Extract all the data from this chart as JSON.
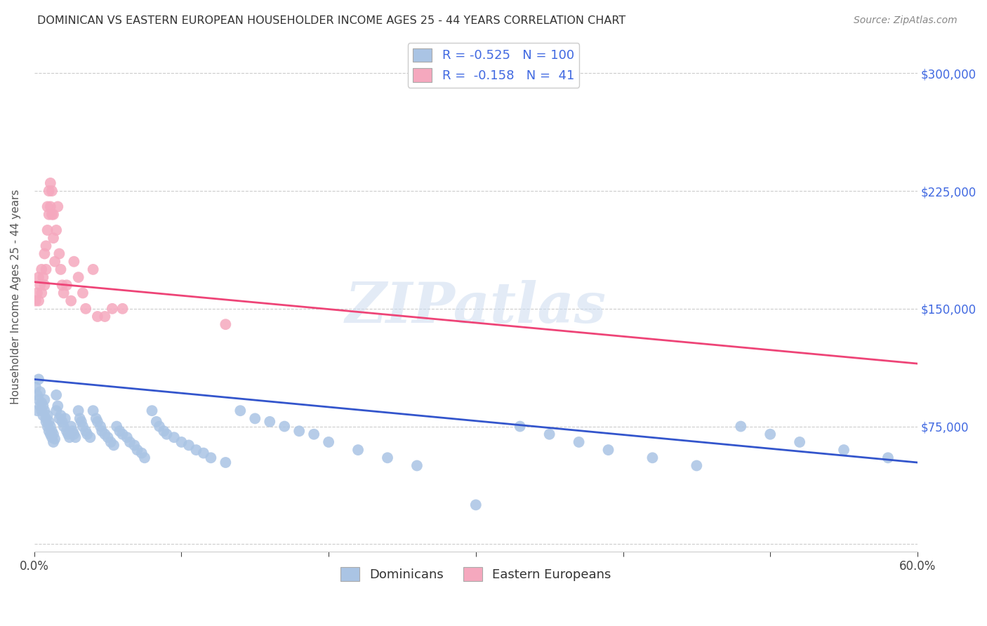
{
  "title": "DOMINICAN VS EASTERN EUROPEAN HOUSEHOLDER INCOME AGES 25 - 44 YEARS CORRELATION CHART",
  "source": "Source: ZipAtlas.com",
  "ylabel": "Householder Income Ages 25 - 44 years",
  "xlim": [
    0.0,
    0.6
  ],
  "ylim": [
    -5000,
    320000
  ],
  "watermark": "ZIPatlas",
  "legend": {
    "blue_r": "-0.525",
    "blue_n": "100",
    "pink_r": "-0.158",
    "pink_n": "41"
  },
  "blue_color": "#aac4e4",
  "pink_color": "#f5a8be",
  "blue_line_color": "#3355cc",
  "pink_line_color": "#ee4477",
  "dominicans_x": [
    0.001,
    0.002,
    0.002,
    0.003,
    0.003,
    0.004,
    0.004,
    0.005,
    0.005,
    0.006,
    0.006,
    0.007,
    0.007,
    0.008,
    0.008,
    0.009,
    0.009,
    0.01,
    0.01,
    0.011,
    0.011,
    0.012,
    0.012,
    0.013,
    0.013,
    0.014,
    0.015,
    0.015,
    0.016,
    0.017,
    0.018,
    0.019,
    0.02,
    0.021,
    0.022,
    0.023,
    0.024,
    0.025,
    0.026,
    0.027,
    0.028,
    0.03,
    0.031,
    0.032,
    0.033,
    0.035,
    0.036,
    0.038,
    0.04,
    0.042,
    0.043,
    0.045,
    0.046,
    0.048,
    0.05,
    0.052,
    0.054,
    0.056,
    0.058,
    0.06,
    0.063,
    0.065,
    0.068,
    0.07,
    0.073,
    0.075,
    0.08,
    0.083,
    0.085,
    0.088,
    0.09,
    0.095,
    0.1,
    0.105,
    0.11,
    0.115,
    0.12,
    0.13,
    0.14,
    0.15,
    0.16,
    0.17,
    0.18,
    0.19,
    0.2,
    0.22,
    0.24,
    0.26,
    0.3,
    0.33,
    0.35,
    0.37,
    0.39,
    0.42,
    0.45,
    0.48,
    0.5,
    0.52,
    0.55,
    0.58
  ],
  "dominicans_y": [
    100000,
    95000,
    85000,
    105000,
    92000,
    88000,
    97000,
    90000,
    85000,
    82000,
    88000,
    85000,
    92000,
    80000,
    78000,
    75000,
    82000,
    72000,
    78000,
    70000,
    75000,
    68000,
    72000,
    65000,
    70000,
    67000,
    95000,
    85000,
    88000,
    80000,
    82000,
    78000,
    75000,
    80000,
    72000,
    70000,
    68000,
    75000,
    72000,
    70000,
    68000,
    85000,
    80000,
    78000,
    75000,
    72000,
    70000,
    68000,
    85000,
    80000,
    78000,
    75000,
    72000,
    70000,
    68000,
    65000,
    63000,
    75000,
    72000,
    70000,
    68000,
    65000,
    63000,
    60000,
    58000,
    55000,
    85000,
    78000,
    75000,
    72000,
    70000,
    68000,
    65000,
    63000,
    60000,
    58000,
    55000,
    52000,
    85000,
    80000,
    78000,
    75000,
    72000,
    70000,
    65000,
    60000,
    55000,
    50000,
    25000,
    75000,
    70000,
    65000,
    60000,
    55000,
    50000,
    75000,
    70000,
    65000,
    60000,
    55000
  ],
  "eastern_europeans_x": [
    0.001,
    0.002,
    0.003,
    0.003,
    0.004,
    0.005,
    0.005,
    0.006,
    0.007,
    0.007,
    0.008,
    0.008,
    0.009,
    0.009,
    0.01,
    0.01,
    0.011,
    0.011,
    0.012,
    0.012,
    0.013,
    0.013,
    0.014,
    0.015,
    0.016,
    0.017,
    0.018,
    0.019,
    0.02,
    0.022,
    0.025,
    0.027,
    0.03,
    0.033,
    0.035,
    0.04,
    0.043,
    0.048,
    0.053,
    0.06,
    0.13
  ],
  "eastern_europeans_y": [
    155000,
    160000,
    170000,
    155000,
    165000,
    175000,
    160000,
    170000,
    185000,
    165000,
    190000,
    175000,
    215000,
    200000,
    225000,
    210000,
    230000,
    215000,
    225000,
    210000,
    210000,
    195000,
    180000,
    200000,
    215000,
    185000,
    175000,
    165000,
    160000,
    165000,
    155000,
    180000,
    170000,
    160000,
    150000,
    175000,
    145000,
    145000,
    150000,
    150000,
    140000
  ]
}
